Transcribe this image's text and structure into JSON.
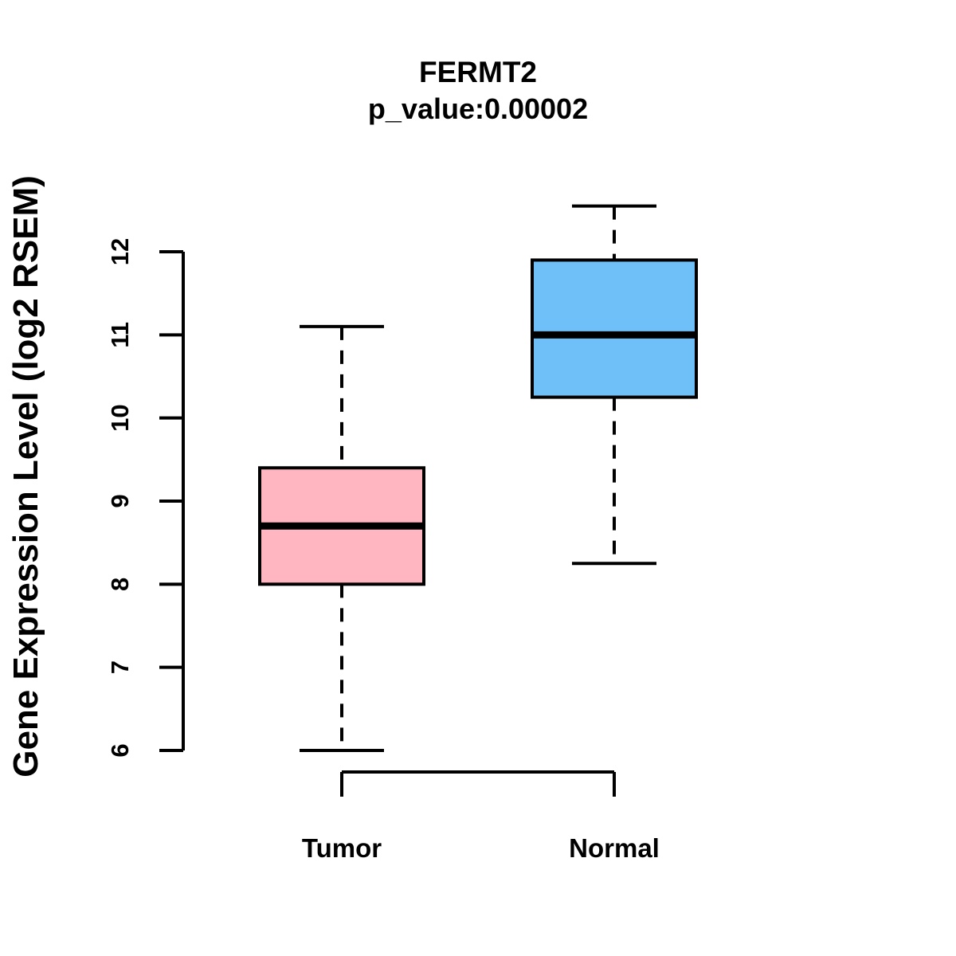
{
  "chart_data": {
    "type": "boxplot",
    "title": "FERMT2",
    "subtitle": "p_value:0.00002",
    "xlabel": "",
    "ylabel": "Gene Expression Level (log2 RSEM)",
    "categories": [
      "Tumor",
      "Normal"
    ],
    "series": [
      {
        "name": "Tumor",
        "fill_color": "#FFB6C1",
        "whisker_low": 6.0,
        "q1": 8.0,
        "median": 8.7,
        "q3": 9.4,
        "whisker_high": 11.1
      },
      {
        "name": "Normal",
        "fill_color": "#6FC0F8",
        "whisker_low": 8.25,
        "q1": 10.25,
        "median": 11.0,
        "q3": 11.9,
        "whisker_high": 12.55
      }
    ],
    "y_axis": {
      "min": 6,
      "max": 12,
      "ticks": [
        6,
        7,
        8,
        9,
        10,
        11,
        12
      ]
    },
    "styles": {
      "box_border_color": "#000000",
      "median_color": "#000000",
      "whisker_line_style": "dashed",
      "axis_color": "#000000",
      "background": "#FFFFFF",
      "legend": "none",
      "grid": "off"
    }
  }
}
